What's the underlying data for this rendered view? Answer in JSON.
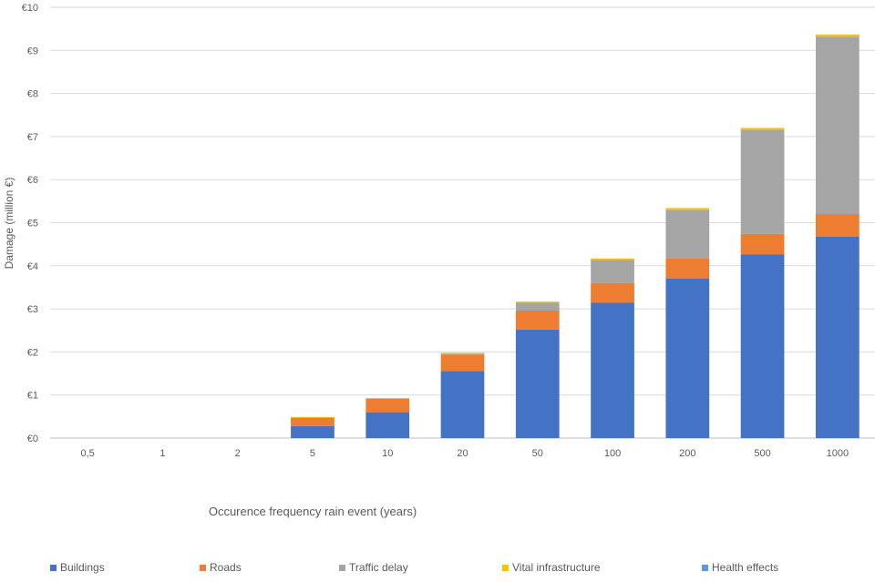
{
  "chart_data": {
    "type": "bar",
    "stacked": true,
    "title": "",
    "xlabel": "Occurence frequency rain event (years)",
    "ylabel": "Damage (million €)",
    "categories": [
      "0,5",
      "1",
      "2",
      "5",
      "10",
      "20",
      "50",
      "100",
      "200",
      "500",
      "1000"
    ],
    "ylim": [
      0,
      10
    ],
    "yticks": [
      "€0",
      "€1",
      "€2",
      "€3",
      "€4",
      "€5",
      "€6",
      "€7",
      "€8",
      "€9",
      "€10"
    ],
    "grid": true,
    "legend_position": "bottom",
    "series": [
      {
        "name": "Buildings",
        "color": "#4472C4",
        "values": [
          0,
          0,
          0,
          0.28,
          0.6,
          1.56,
          2.52,
          3.14,
          3.7,
          4.26,
          4.68
        ]
      },
      {
        "name": "Roads",
        "color": "#ED7D31",
        "values": [
          0,
          0,
          0,
          0.2,
          0.32,
          0.38,
          0.44,
          0.46,
          0.48,
          0.48,
          0.52
        ]
      },
      {
        "name": "Traffic delay",
        "color": "#A5A5A5",
        "values": [
          0,
          0,
          0,
          0,
          0,
          0.02,
          0.18,
          0.54,
          1.12,
          2.42,
          4.12
        ]
      },
      {
        "name": "Vital infrastructure",
        "color": "#FFC000",
        "values": [
          0,
          0,
          0,
          0.01,
          0.01,
          0.02,
          0.03,
          0.03,
          0.04,
          0.04,
          0.05
        ]
      },
      {
        "name": "Health effects",
        "color": "#5B9BD5",
        "values": [
          0,
          0,
          0,
          0,
          0,
          0,
          0,
          0,
          0,
          0,
          0
        ]
      }
    ]
  }
}
